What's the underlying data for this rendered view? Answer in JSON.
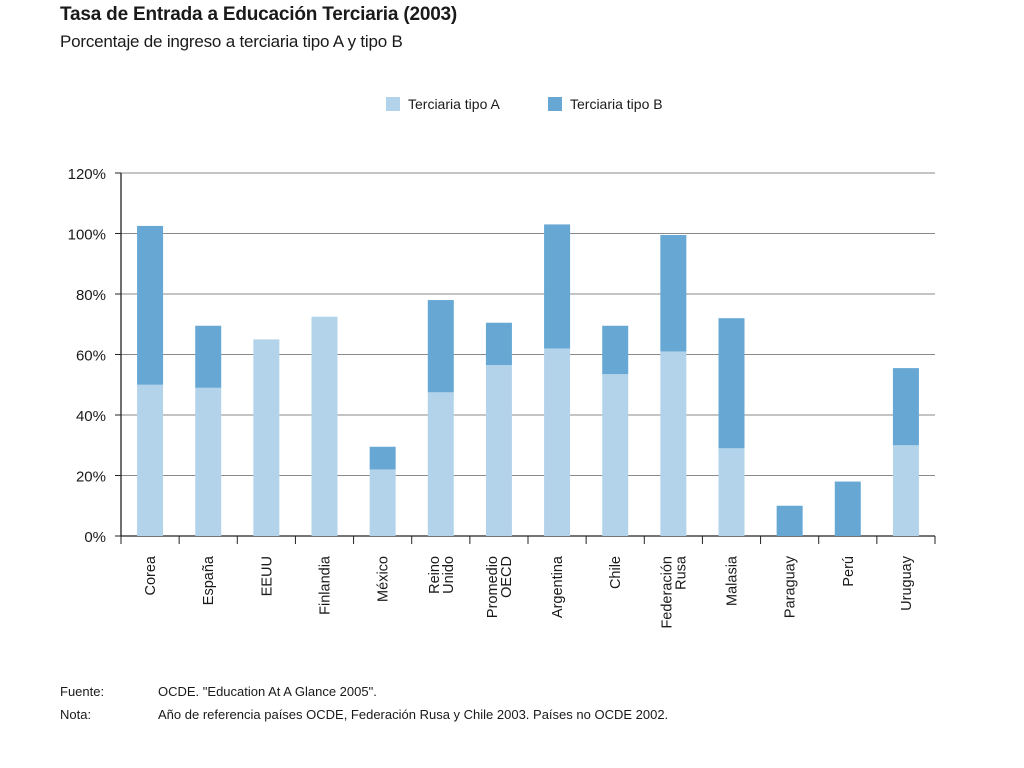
{
  "header": {
    "title": "Tasa de Entrada a Educación Terciaria (2003)",
    "subtitle": "Porcentaje de ingreso a terciaria tipo A y tipo B"
  },
  "chart_data": {
    "type": "bar",
    "stacked": true,
    "title": "Tasa de Entrada a Educación Terciaria (2003)",
    "subtitle": "Porcentaje de ingreso a terciaria tipo A y tipo B",
    "categories": [
      [
        "Corea"
      ],
      [
        "España"
      ],
      [
        "EEUU"
      ],
      [
        "Finlandia"
      ],
      [
        "México"
      ],
      [
        "Reino",
        "Unido"
      ],
      [
        "Promedio",
        "OECD"
      ],
      [
        "Argentina"
      ],
      [
        "Chile"
      ],
      [
        "Federación",
        "Rusa"
      ],
      [
        "Malasia"
      ],
      [
        "Paraguay"
      ],
      [
        "Perú"
      ],
      [
        "Uruguay"
      ]
    ],
    "series": [
      {
        "name": "Terciaria tipo A",
        "color": "#b3d3ea",
        "values": [
          50,
          49,
          65,
          72.5,
          22,
          47.5,
          56.5,
          62,
          53.5,
          61,
          29,
          0,
          0,
          30
        ]
      },
      {
        "name": "Terciaria tipo B",
        "color": "#66a7d4",
        "values": [
          52.5,
          20.5,
          0,
          0,
          7.5,
          30.5,
          14,
          41,
          16,
          38.5,
          43,
          10,
          18,
          25.5
        ]
      }
    ],
    "ylim": [
      0,
      120
    ],
    "yticks": [
      "0%",
      "20%",
      "40%",
      "60%",
      "80%",
      "100%",
      "120%"
    ],
    "xlabel": "",
    "ylabel": "",
    "grid": true,
    "legend_position": "top"
  },
  "notes": [
    {
      "label": "Fuente:",
      "text": "OCDE. \"Education At A Glance 2005\"."
    },
    {
      "label": "Nota:",
      "text": "Año de referencia países OCDE, Federación Rusa y Chile 2003. Países no OCDE 2002."
    }
  ]
}
